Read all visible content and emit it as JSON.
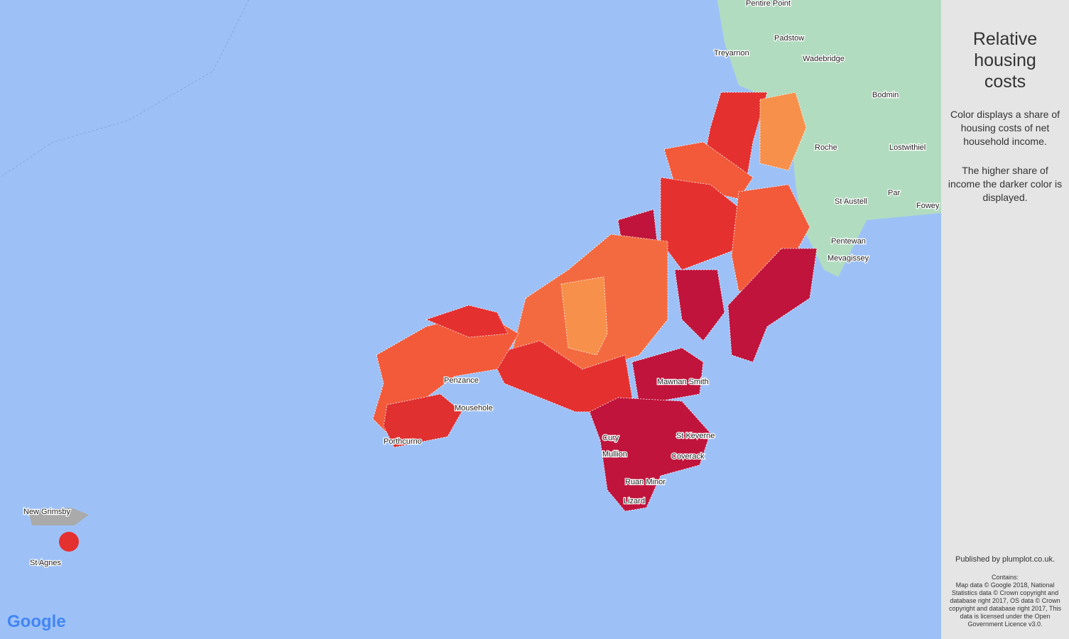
{
  "sidebar": {
    "title": "Relative housing costs",
    "description": "Color displays a share of housing costs of net household income.",
    "note": "The higher share of income the darker color is displayed.",
    "published": "Published by plumplot.co.uk.",
    "contains_heading": "Contains:",
    "contains": "Map data © Google 2018, National Statistics data © Crown copyright and database right 2017, OS data © Crown copyright and database right 2017, This data is licensed under the Open Government Licence v3.0."
  },
  "map": {
    "labels": [
      "Pentire Point",
      "Padstow",
      "Treyarnon",
      "Wadebridge",
      "Bodmin",
      "Roche",
      "Lostwithiel",
      "Par",
      "St Austell",
      "Fowey",
      "Pentewan",
      "Mevagissey",
      "Mawnan Smith",
      "St Keverne",
      "Coverack",
      "Mullion",
      "Cury",
      "Ruan Minor",
      "Lizard",
      "Mousehole",
      "Porthcurno",
      "Penzance",
      "New Grimsby",
      "St Agnes"
    ],
    "logo": "Google"
  }
}
